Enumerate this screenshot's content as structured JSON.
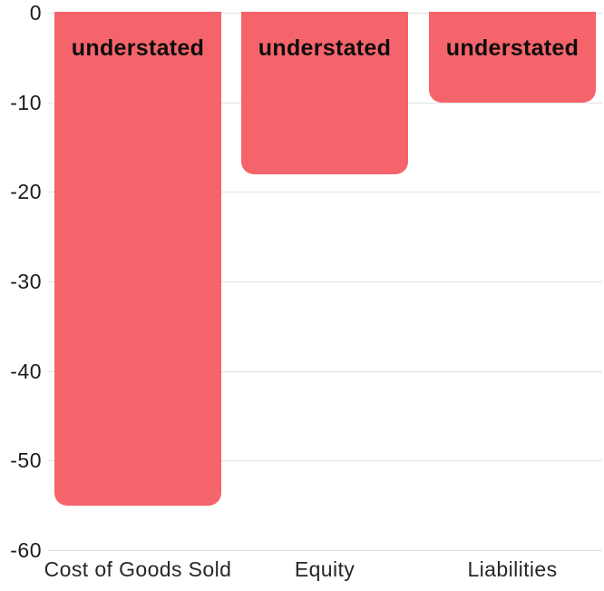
{
  "chart_data": {
    "type": "bar",
    "title": "",
    "xlabel": "",
    "ylabel": "",
    "categories": [
      "Cost of Goods Sold",
      "Equity",
      "Liabilities"
    ],
    "values": [
      -55,
      -18,
      -10
    ],
    "bar_labels": [
      "understated",
      "understated",
      "understated"
    ],
    "ylim": [
      -60,
      0
    ],
    "yticks": [
      0,
      -10,
      -20,
      -30,
      -40,
      -50,
      -60
    ],
    "grid": true,
    "legend": false,
    "colors": {
      "bar": "#f5646a",
      "gridline": "#e1e1e1",
      "tick_text": "#1c1c1c",
      "bar_label_text": "#0d0d0d",
      "category_text": "#272727",
      "background": "#ffffff"
    }
  }
}
